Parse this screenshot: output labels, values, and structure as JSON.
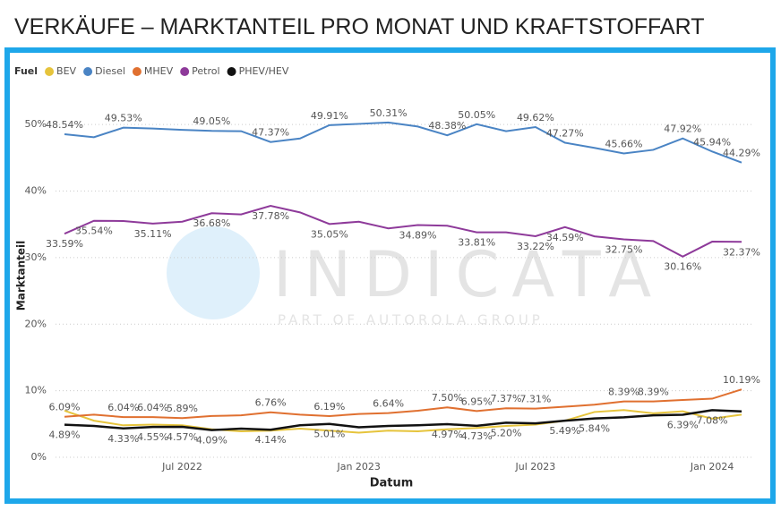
{
  "chart_data": {
    "type": "line",
    "title": "VERKÄUFE – MARKTANTEIL PRO MONAT UND KRAFTSTOFFART",
    "legend_title": "Fuel",
    "xlabel": "Datum",
    "ylabel": "Marktanteil",
    "watermark": "INDICATA",
    "watermark_sub": "PART OF AUTOROLA GROUP",
    "categories": [
      null,
      null,
      null,
      null,
      "Jul 2022",
      null,
      null,
      null,
      null,
      null,
      "Jan 2023",
      null,
      null,
      null,
      null,
      null,
      "Jul 2023",
      null,
      null,
      null,
      null,
      null,
      "Jan 2024",
      null
    ],
    "ylim": [
      0,
      55
    ],
    "yticks": [
      {
        "value": 0,
        "label": "0%"
      },
      {
        "value": 10,
        "label": "10%"
      },
      {
        "value": 20,
        "label": "20%"
      },
      {
        "value": 30,
        "label": "30%"
      },
      {
        "value": 40,
        "label": "40%"
      },
      {
        "value": 50,
        "label": "50%"
      }
    ],
    "grid": true,
    "legend": "top-left",
    "series": [
      {
        "name": "BEV",
        "color": "#e6c43c",
        "values": [
          7.0,
          5.5,
          4.8,
          4.9,
          4.8,
          4.2,
          3.9,
          4.0,
          4.3,
          4.0,
          3.7,
          4.0,
          3.9,
          4.2,
          4.4,
          4.7,
          4.9,
          5.5,
          6.8,
          7.1,
          6.6,
          6.9,
          5.8,
          6.4
        ]
      },
      {
        "name": "Diesel",
        "color": "#4a84c4",
        "values": [
          48.54,
          48.1,
          49.53,
          49.4,
          49.2,
          49.05,
          49.0,
          47.37,
          47.9,
          49.91,
          50.1,
          50.31,
          49.7,
          48.38,
          50.05,
          49.0,
          49.62,
          47.27,
          46.5,
          45.66,
          46.2,
          47.92,
          45.94,
          44.29
        ],
        "value_labels": [
          "48.54%",
          null,
          "49.53%",
          null,
          null,
          "49.05%",
          null,
          "47.37%",
          null,
          "49.91%",
          null,
          "50.31%",
          null,
          "48.38%",
          "50.05%",
          null,
          "49.62%",
          "47.27%",
          null,
          "45.66%",
          null,
          "47.92%",
          "45.94%",
          "44.29%"
        ]
      },
      {
        "name": "MHEV",
        "color": "#e07030",
        "values": [
          6.09,
          6.4,
          6.04,
          6.04,
          5.89,
          6.2,
          6.3,
          6.76,
          6.4,
          6.19,
          6.5,
          6.64,
          7.0,
          7.5,
          6.95,
          7.37,
          7.31,
          7.6,
          7.9,
          8.39,
          8.39,
          8.6,
          8.8,
          10.19
        ],
        "value_labels": [
          "6.09%",
          null,
          "6.04%",
          "6.04%",
          "5.89%",
          null,
          null,
          "6.76%",
          null,
          "6.19%",
          null,
          "6.64%",
          null,
          "7.50%",
          "6.95%",
          "7.37%",
          "7.31%",
          null,
          null,
          "8.39%",
          "8.39%",
          null,
          null,
          "10.19%"
        ]
      },
      {
        "name": "Petrol",
        "color": "#8e3a9a",
        "values": [
          33.59,
          35.54,
          35.5,
          35.11,
          35.4,
          36.68,
          36.5,
          37.78,
          36.8,
          35.05,
          35.4,
          34.4,
          34.89,
          34.8,
          33.81,
          33.8,
          33.22,
          34.59,
          33.2,
          32.75,
          32.5,
          30.16,
          32.4,
          32.37
        ],
        "value_labels": [
          "33.59%",
          "35.54%",
          null,
          "35.11%",
          null,
          "36.68%",
          null,
          "37.78%",
          null,
          "35.05%",
          null,
          null,
          "34.89%",
          null,
          "33.81%",
          null,
          "33.22%",
          "34.59%",
          null,
          "32.75%",
          null,
          "30.16%",
          null,
          "32.37%"
        ]
      },
      {
        "name": "PHEV/HEV",
        "color": "#111111",
        "values": [
          4.89,
          4.7,
          4.33,
          4.55,
          4.57,
          4.09,
          4.3,
          4.14,
          4.8,
          5.01,
          4.5,
          4.7,
          4.8,
          4.97,
          4.73,
          5.2,
          5.1,
          5.49,
          5.84,
          6.0,
          6.3,
          6.39,
          7.08,
          6.9
        ],
        "value_labels": [
          "4.89%",
          null,
          "4.33%",
          "4.55%",
          "4.57%",
          "4.09%",
          null,
          "4.14%",
          null,
          "5.01%",
          null,
          null,
          null,
          "4.97%",
          "4.73%",
          "5.20%",
          null,
          "5.49%",
          "5.84%",
          null,
          null,
          "6.39%",
          "7.08%",
          null
        ]
      }
    ]
  }
}
